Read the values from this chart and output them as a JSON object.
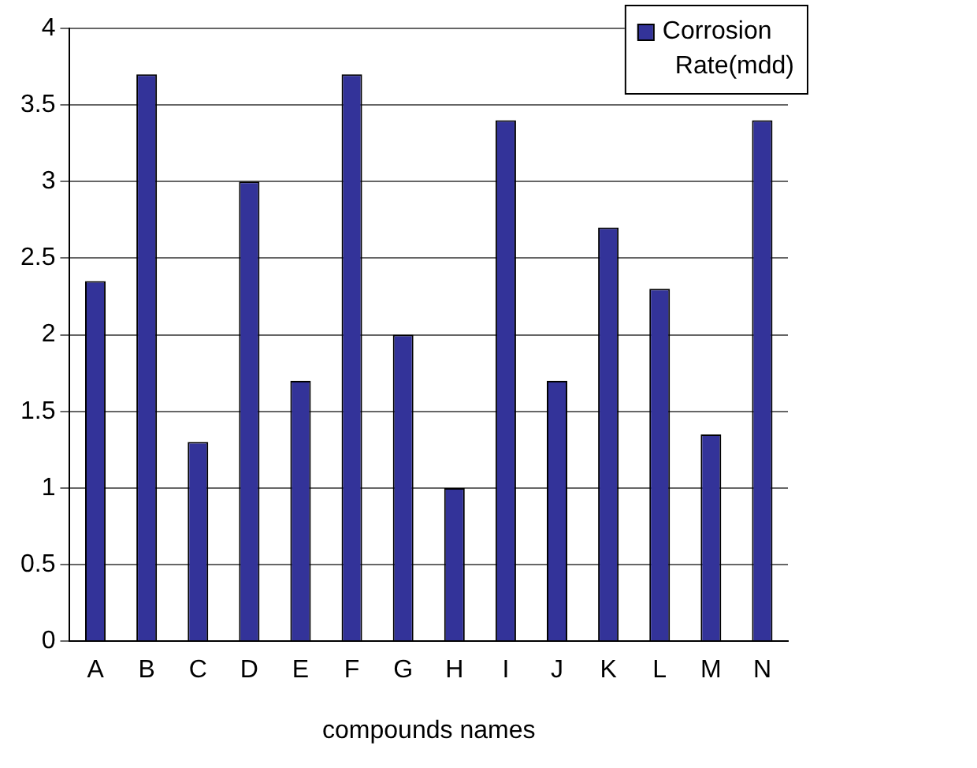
{
  "chart_data": {
    "type": "bar",
    "xlabel": "compounds names",
    "categories": [
      "A",
      "B",
      "C",
      "D",
      "E",
      "F",
      "G",
      "H",
      "I",
      "J",
      "K",
      "L",
      "M",
      "N"
    ],
    "series": [
      {
        "name": "Corrosion Rate(mdd)",
        "color": "#333399",
        "values": [
          2.35,
          3.7,
          1.3,
          3.0,
          1.7,
          3.7,
          2.0,
          1.0,
          3.4,
          1.7,
          2.7,
          2.3,
          1.35,
          3.4
        ]
      }
    ],
    "ylim": [
      0,
      4
    ],
    "yticks": [
      0,
      0.5,
      1,
      1.5,
      2,
      2.5,
      3,
      3.5,
      4
    ],
    "grid": "y",
    "legend": "top right"
  }
}
